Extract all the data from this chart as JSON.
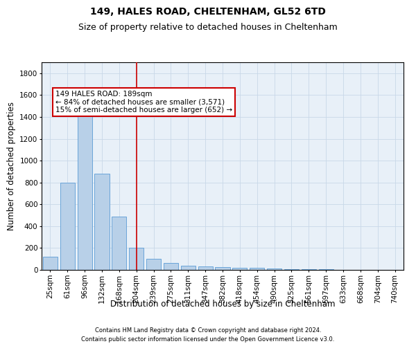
{
  "title1": "149, HALES ROAD, CHELTENHAM, GL52 6TD",
  "title2": "Size of property relative to detached houses in Cheltenham",
  "xlabel": "Distribution of detached houses by size in Cheltenham",
  "ylabel": "Number of detached properties",
  "footnote1": "Contains HM Land Registry data © Crown copyright and database right 2024.",
  "footnote2": "Contains public sector information licensed under the Open Government Licence v3.0.",
  "categories": [
    "25sqm",
    "61sqm",
    "96sqm",
    "132sqm",
    "168sqm",
    "204sqm",
    "239sqm",
    "275sqm",
    "311sqm",
    "347sqm",
    "382sqm",
    "418sqm",
    "454sqm",
    "490sqm",
    "525sqm",
    "561sqm",
    "597sqm",
    "633sqm",
    "668sqm",
    "704sqm",
    "740sqm"
  ],
  "values": [
    120,
    800,
    1470,
    880,
    490,
    200,
    100,
    65,
    40,
    30,
    25,
    20,
    17,
    12,
    8,
    6,
    4,
    3,
    3,
    3,
    3
  ],
  "bar_color": "#b8d0e8",
  "bar_edge_color": "#5b9bd5",
  "vline_x": 5.0,
  "vline_color": "#cc0000",
  "annotation_line1": "149 HALES ROAD: 189sqm",
  "annotation_line2": "← 84% of detached houses are smaller (3,571)",
  "annotation_line3": "15% of semi-detached houses are larger (652) →",
  "annotation_box_color": "white",
  "annotation_box_edge": "#cc0000",
  "ylim": [
    0,
    1900
  ],
  "yticks": [
    0,
    200,
    400,
    600,
    800,
    1000,
    1200,
    1400,
    1600,
    1800
  ],
  "background_color": "white",
  "axes_bg_color": "#e8f0f8",
  "grid_color": "#c8d8e8",
  "title_fontsize": 10,
  "subtitle_fontsize": 9,
  "tick_fontsize": 7.5,
  "label_fontsize": 8.5,
  "annotation_fontsize": 7.5,
  "footnote_fontsize": 6
}
